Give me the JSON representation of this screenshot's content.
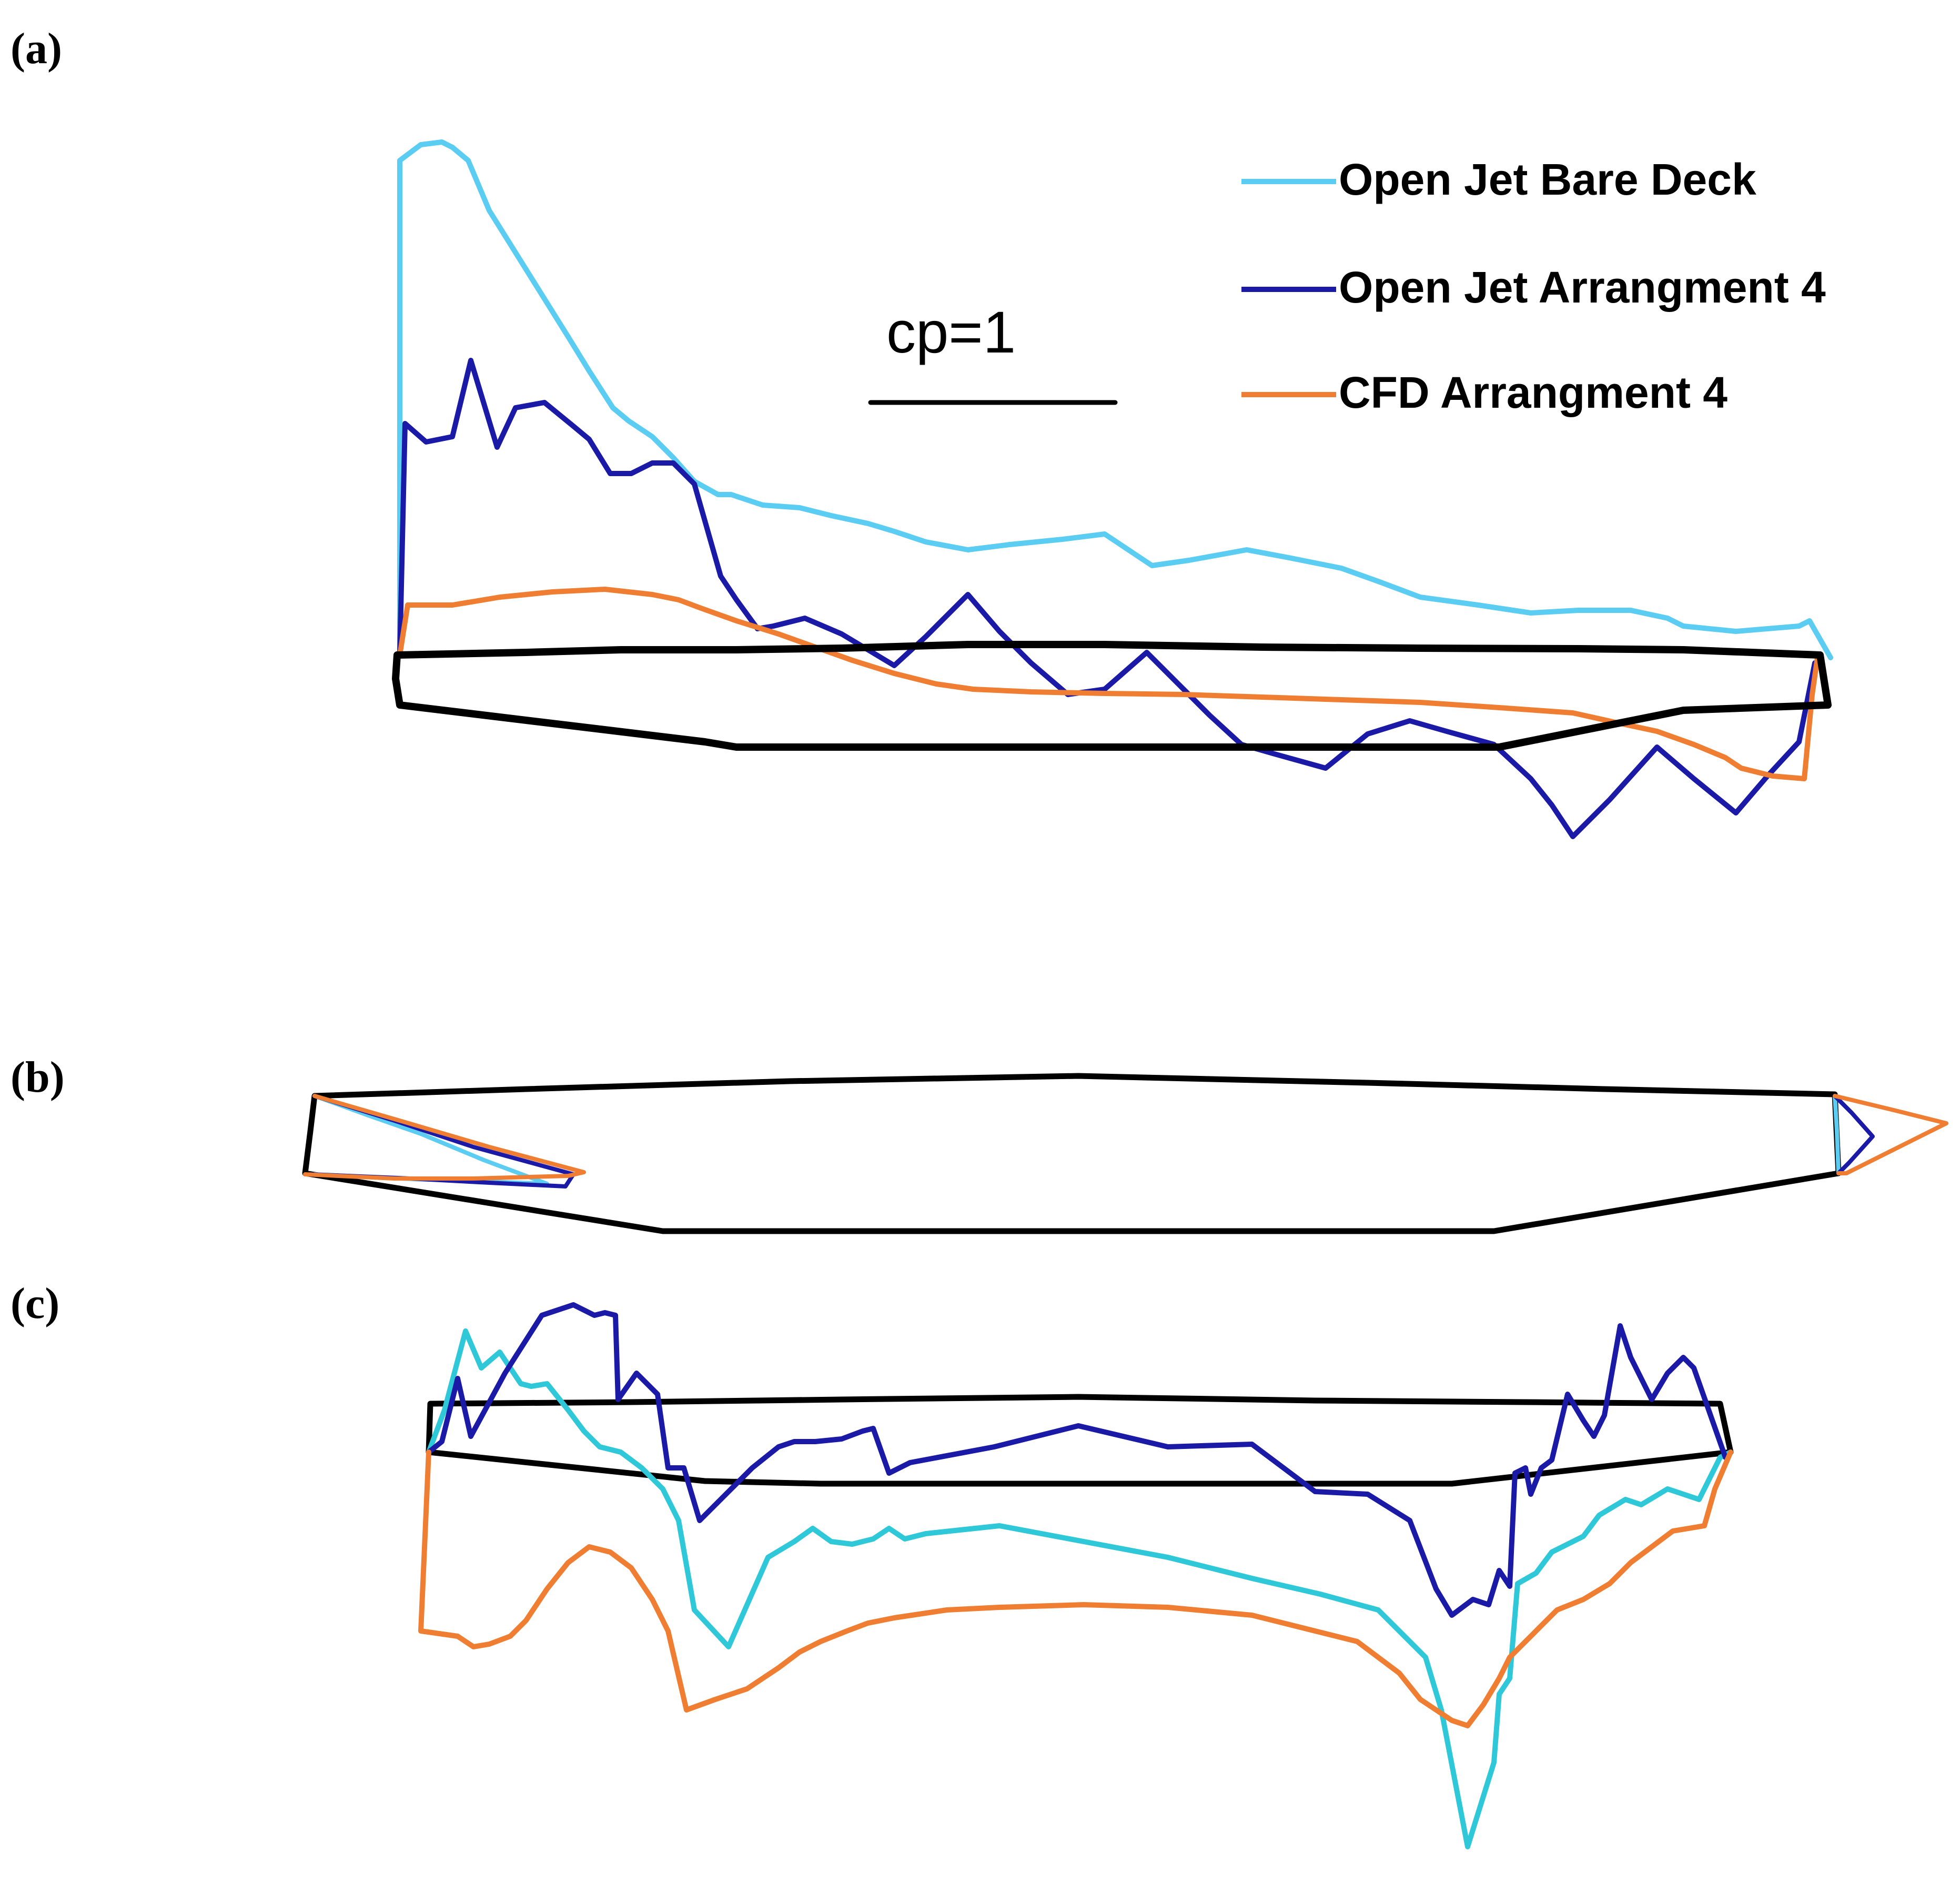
{
  "panel_labels": {
    "a": "(a)",
    "b": "(b)",
    "c": "(c)"
  },
  "scale_bar": {
    "label": "cp=1"
  },
  "legend": [
    {
      "label": "Open Jet Bare Deck",
      "color": "#5ccdf2"
    },
    {
      "label": "Open Jet Arrangment 4",
      "color": "#1a1aa6"
    },
    {
      "label": "CFD Arrangment 4",
      "color": "#ef7d32"
    }
  ],
  "colors": {
    "outline": "#000000",
    "open_jet_bare_deck_panel_c": "#2ec8d8"
  }
}
